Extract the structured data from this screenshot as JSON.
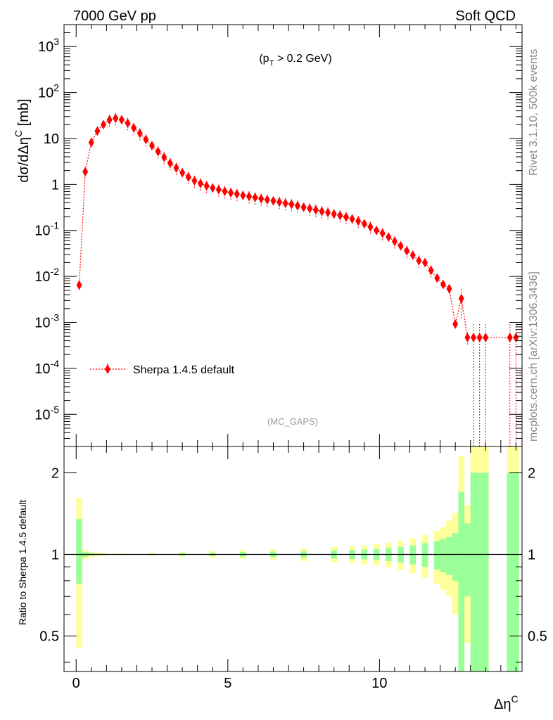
{
  "header": {
    "left": "7000 GeV pp",
    "right": "Soft QCD"
  },
  "side_labels": {
    "rivet": "Rivet 3.1.10,  500k events",
    "mcplots": "mcplots.cern.ch [arXiv:1306.3436]"
  },
  "chart_data": {
    "type": "scatter",
    "top_panel": {
      "cut_label": "(p_T > 0.2 GeV)",
      "watermark": "(MC_GAPS)",
      "ylabel": "dσ/dΔη^C [mb]",
      "yscale": "log",
      "ylim": [
        2e-06,
        3000
      ],
      "y_ticks": [
        {
          "value": 1e-05,
          "label": "10^-5"
        },
        {
          "value": 0.0001,
          "label": "10^-4"
        },
        {
          "value": 0.001,
          "label": "10^-3"
        },
        {
          "value": 0.01,
          "label": "10^-2"
        },
        {
          "value": 0.1,
          "label": "10^-1"
        },
        {
          "value": 1,
          "label": "1"
        },
        {
          "value": 10,
          "label": "10"
        },
        {
          "value": 100,
          "label": "10^2"
        },
        {
          "value": 1000,
          "label": "10^3"
        }
      ],
      "legend": {
        "position": "lower-left",
        "entries": [
          "Sherpa 1.4.5 default"
        ]
      },
      "series": [
        {
          "name": "Sherpa 1.4.5 default",
          "color": "#ff0000",
          "marker": "diamond",
          "line": "dotted",
          "x": [
            0.1,
            0.3,
            0.5,
            0.7,
            0.9,
            1.1,
            1.3,
            1.5,
            1.7,
            1.9,
            2.1,
            2.3,
            2.5,
            2.7,
            2.9,
            3.1,
            3.3,
            3.5,
            3.7,
            3.9,
            4.1,
            4.3,
            4.5,
            4.7,
            4.9,
            5.1,
            5.3,
            5.5,
            5.7,
            5.9,
            6.1,
            6.3,
            6.5,
            6.7,
            6.9,
            7.1,
            7.3,
            7.5,
            7.7,
            7.9,
            8.1,
            8.3,
            8.5,
            8.7,
            8.9,
            9.1,
            9.3,
            9.5,
            9.7,
            9.9,
            10.1,
            10.3,
            10.5,
            10.7,
            10.9,
            11.1,
            11.3,
            11.5,
            11.7,
            11.9,
            12.1,
            12.3,
            12.5,
            12.7,
            12.9,
            13.1,
            13.3,
            13.5,
            14.3,
            14.5
          ],
          "y": [
            0.0065,
            1.9,
            8.2,
            14.5,
            20,
            25.5,
            27.5,
            25.5,
            21.5,
            17,
            13,
            9.5,
            7,
            5.2,
            3.9,
            2.9,
            2.3,
            1.8,
            1.45,
            1.2,
            1.05,
            0.93,
            0.84,
            0.77,
            0.71,
            0.66,
            0.62,
            0.58,
            0.55,
            0.52,
            0.49,
            0.465,
            0.44,
            0.415,
            0.39,
            0.37,
            0.345,
            0.32,
            0.3,
            0.28,
            0.26,
            0.245,
            0.228,
            0.212,
            0.196,
            0.178,
            0.16,
            0.14,
            0.12,
            0.1,
            0.087,
            0.072,
            0.058,
            0.046,
            0.036,
            0.029,
            0.022,
            0.02,
            0.0135,
            0.0092,
            0.0067,
            0.0054,
            0.00092,
            0.0033,
            0.00047,
            0.00047,
            0.00047,
            0.00047,
            0.00047,
            0.00047
          ]
        }
      ]
    },
    "ratio_panel": {
      "ylabel": "Ratio to Sherpa 1.4.5 default",
      "ylim": [
        0.37,
        2.5
      ],
      "y_ticks": [
        {
          "value": 0.5,
          "label": "0.5"
        },
        {
          "value": 1,
          "label": "1"
        },
        {
          "value": 2,
          "label": "2"
        }
      ],
      "reference": 1,
      "band_colors": {
        "inner": "#99ff99",
        "outer": "#ffff99"
      },
      "bins": [
        {
          "x": 0.1,
          "in": [
            0.78,
            1.35
          ],
          "out": [
            0.45,
            1.62
          ]
        },
        {
          "x": 0.3,
          "in": [
            0.98,
            1.02
          ],
          "out": [
            0.96,
            1.04
          ]
        },
        {
          "x": 0.5,
          "in": [
            0.99,
            1.01
          ],
          "out": [
            0.98,
            1.02
          ]
        },
        {
          "x": 0.7,
          "in": [
            0.993,
            1.007
          ],
          "out": [
            0.985,
            1.015
          ]
        },
        {
          "x": 0.9,
          "in": [
            0.995,
            1.005
          ],
          "out": [
            0.99,
            1.01
          ]
        },
        {
          "x": 1.5,
          "in": [
            0.996,
            1.004
          ],
          "out": [
            0.992,
            1.008
          ]
        },
        {
          "x": 2.5,
          "in": [
            0.994,
            1.006
          ],
          "out": [
            0.988,
            1.012
          ]
        },
        {
          "x": 3.5,
          "in": [
            0.99,
            1.01
          ],
          "out": [
            0.98,
            1.02
          ]
        },
        {
          "x": 4.5,
          "in": [
            0.985,
            1.015
          ],
          "out": [
            0.97,
            1.03
          ]
        },
        {
          "x": 5.5,
          "in": [
            0.98,
            1.02
          ],
          "out": [
            0.962,
            1.038
          ]
        },
        {
          "x": 6.5,
          "in": [
            0.976,
            1.024
          ],
          "out": [
            0.954,
            1.046
          ]
        },
        {
          "x": 7.5,
          "in": [
            0.972,
            1.028
          ],
          "out": [
            0.945,
            1.055
          ]
        },
        {
          "x": 8.5,
          "in": [
            0.965,
            1.035
          ],
          "out": [
            0.935,
            1.065
          ]
        },
        {
          "x": 9.1,
          "in": [
            0.962,
            1.038
          ],
          "out": [
            0.928,
            1.072
          ]
        },
        {
          "x": 9.5,
          "in": [
            0.958,
            1.042
          ],
          "out": [
            0.92,
            1.08
          ]
        },
        {
          "x": 9.9,
          "in": [
            0.953,
            1.047
          ],
          "out": [
            0.91,
            1.09
          ]
        },
        {
          "x": 10.3,
          "in": [
            0.945,
            1.055
          ],
          "out": [
            0.895,
            1.105
          ]
        },
        {
          "x": 10.7,
          "in": [
            0.935,
            1.065
          ],
          "out": [
            0.875,
            1.125
          ]
        },
        {
          "x": 11.1,
          "in": [
            0.92,
            1.08
          ],
          "out": [
            0.85,
            1.15
          ]
        },
        {
          "x": 11.5,
          "in": [
            0.9,
            1.1
          ],
          "out": [
            0.82,
            1.18
          ]
        },
        {
          "x": 11.9,
          "in": [
            0.88,
            1.12
          ],
          "out": [
            0.78,
            1.22
          ]
        },
        {
          "x": 12.1,
          "in": [
            0.86,
            1.14
          ],
          "out": [
            0.74,
            1.26
          ]
        },
        {
          "x": 12.3,
          "in": [
            0.84,
            1.16
          ],
          "out": [
            0.7,
            1.33
          ]
        },
        {
          "x": 12.5,
          "in": [
            0.8,
            1.2
          ],
          "out": [
            0.6,
            1.42
          ]
        },
        {
          "x": 12.7,
          "in": [
            0.37,
            1.7
          ],
          "out": [
            0.37,
            2.3
          ]
        },
        {
          "x": 12.9,
          "in": [
            0.7,
            1.3
          ],
          "out": [
            0.47,
            1.52
          ]
        },
        {
          "x": 13.1,
          "in": [
            0.37,
            2.0
          ],
          "out": [
            0.37,
            2.5
          ]
        },
        {
          "x": 13.3,
          "in": [
            0.37,
            2.0
          ],
          "out": [
            0.37,
            2.5
          ]
        },
        {
          "x": 13.5,
          "in": [
            0.37,
            2.0
          ],
          "out": [
            0.37,
            2.5
          ]
        },
        {
          "x": 14.3,
          "in": [
            0.37,
            2.0
          ],
          "out": [
            0.37,
            2.5
          ]
        },
        {
          "x": 14.5,
          "in": [
            0.37,
            2.0
          ],
          "out": [
            0.37,
            2.5
          ]
        }
      ]
    },
    "xlabel": "Δη^C",
    "xlim": [
      -0.4,
      14.7
    ],
    "x_ticks": [
      {
        "value": 0,
        "label": "0"
      },
      {
        "value": 5,
        "label": "5"
      },
      {
        "value": 10,
        "label": "10"
      }
    ]
  }
}
